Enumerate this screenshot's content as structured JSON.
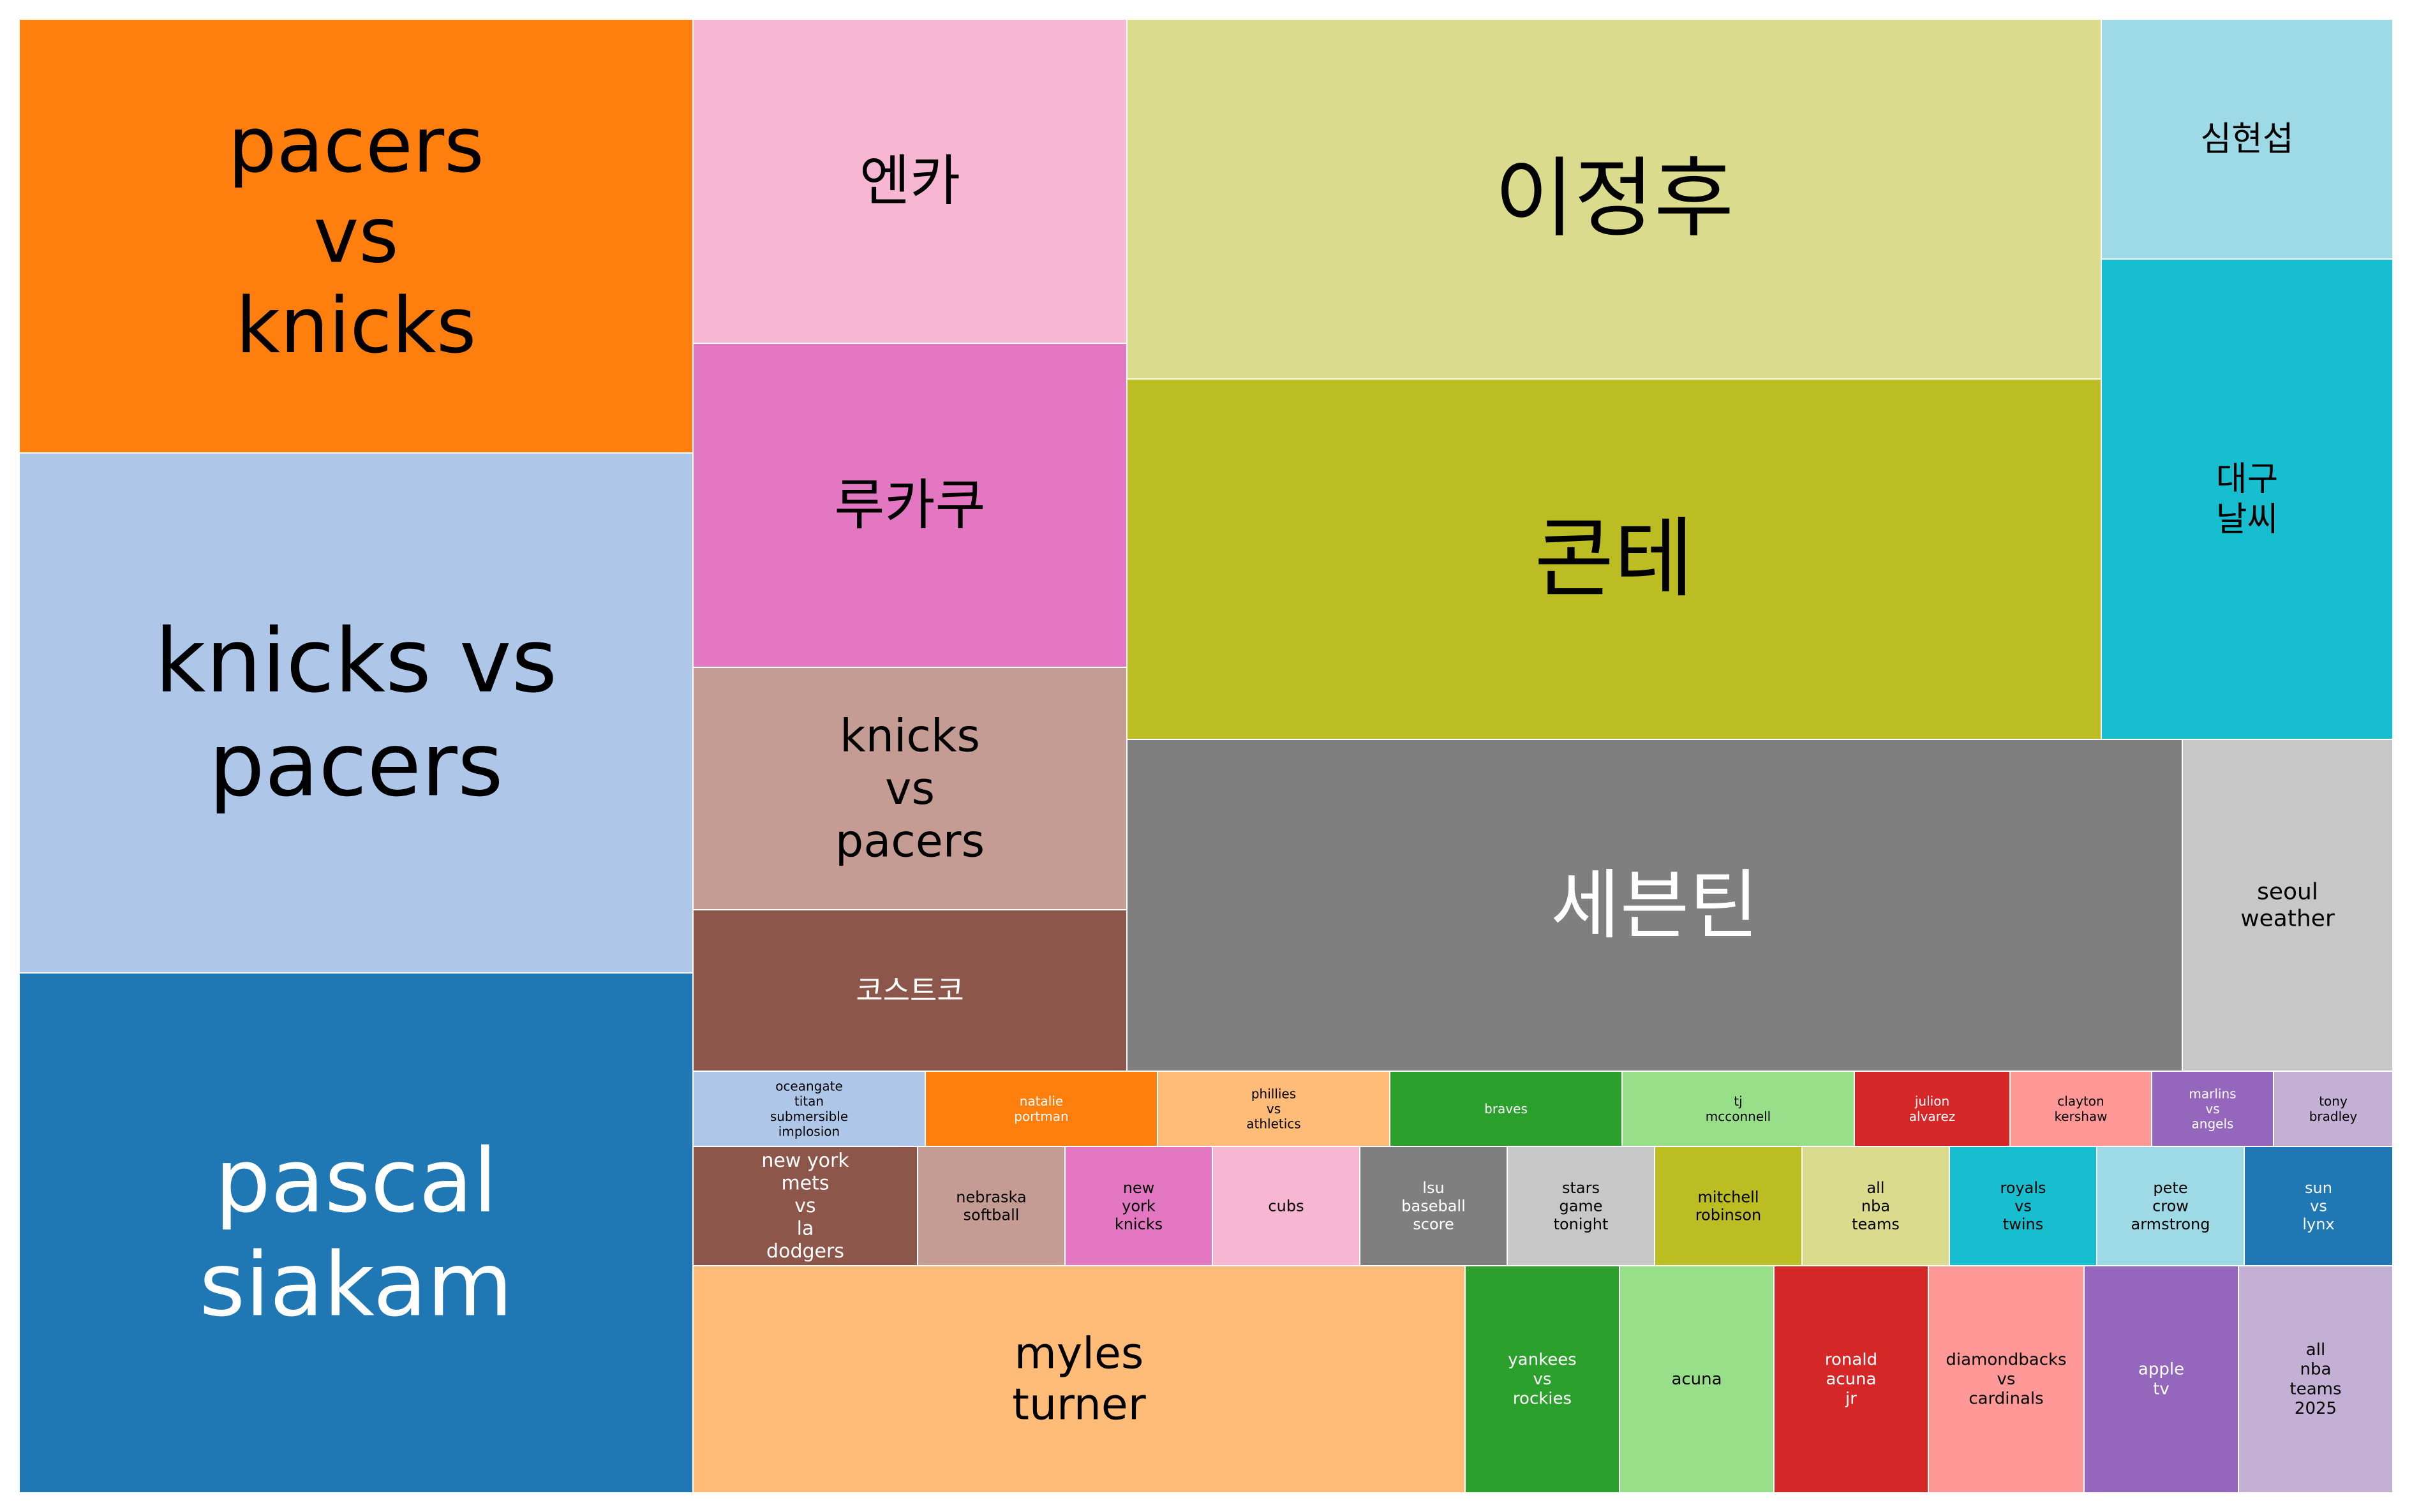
{
  "chart_data": {
    "type": "treemap",
    "title": "",
    "items": [
      {
        "label": "pacers vs knicks",
        "lines": [
          "pacers",
          "vs",
          "knicks"
        ],
        "color": "#ff7f0e",
        "text_color": "#000000"
      },
      {
        "label": "knicks vs pacers",
        "lines": [
          "knicks vs",
          "pacers"
        ],
        "color": "#aec7e8",
        "text_color": "#000000"
      },
      {
        "label": "pascal siakam",
        "lines": [
          "pascal",
          "siakam"
        ],
        "color": "#1f77b4",
        "text_color": "#ffffff"
      },
      {
        "label": "엔카",
        "lines": [
          "엔카"
        ],
        "color": "#f7b6d2",
        "text_color": "#000000"
      },
      {
        "label": "루카쿠",
        "lines": [
          "루카쿠"
        ],
        "color": "#e377c2",
        "text_color": "#000000"
      },
      {
        "label": "knicks vs pacers",
        "lines": [
          "knicks",
          "vs",
          "pacers"
        ],
        "color": "#c49c94",
        "text_color": "#000000"
      },
      {
        "label": "코스트코",
        "lines": [
          "코스트코"
        ],
        "color": "#8c564b",
        "text_color": "#ffffff"
      },
      {
        "label": "이정후",
        "lines": [
          "이정후"
        ],
        "color": "#dbdb8d",
        "text_color": "#000000"
      },
      {
        "label": "콘테",
        "lines": [
          "콘테"
        ],
        "color": "#bcbd22",
        "text_color": "#000000"
      },
      {
        "label": "심현섭",
        "lines": [
          "심현섭"
        ],
        "color": "#9edae5",
        "text_color": "#000000"
      },
      {
        "label": "대구 날씨",
        "lines": [
          "대구",
          "날씨"
        ],
        "color": "#17becf",
        "text_color": "#000000"
      },
      {
        "label": "세븐틴",
        "lines": [
          "세븐틴"
        ],
        "color": "#7f7f7f",
        "text_color": "#ffffff"
      },
      {
        "label": "seoul weather",
        "lines": [
          "seoul",
          "weather"
        ],
        "color": "#c7c7c7",
        "text_color": "#000000"
      },
      {
        "label": "oceangate titan submersible implosion",
        "lines": [
          "oceangate",
          "titan",
          "submersible",
          "implosion"
        ],
        "color": "#aec7e8",
        "text_color": "#000000"
      },
      {
        "label": "natalie portman",
        "lines": [
          "natalie",
          "portman"
        ],
        "color": "#ff7f0e",
        "text_color": "#ffffff"
      },
      {
        "label": "phillies vs athletics",
        "lines": [
          "phillies",
          "vs",
          "athletics"
        ],
        "color": "#ffbb78",
        "text_color": "#000000"
      },
      {
        "label": "braves",
        "lines": [
          "braves"
        ],
        "color": "#2ca02c",
        "text_color": "#ffffff"
      },
      {
        "label": "tj mcconnell",
        "lines": [
          "tj",
          "mcconnell"
        ],
        "color": "#98df8a",
        "text_color": "#000000"
      },
      {
        "label": "julion alvarez",
        "lines": [
          "julion",
          "alvarez"
        ],
        "color": "#d62728",
        "text_color": "#ffffff"
      },
      {
        "label": "clayton kershaw",
        "lines": [
          "clayton",
          "kershaw"
        ],
        "color": "#ff9896",
        "text_color": "#000000"
      },
      {
        "label": "marlins vs angels",
        "lines": [
          "marlins",
          "vs",
          "angels"
        ],
        "color": "#9467bd",
        "text_color": "#ffffff"
      },
      {
        "label": "tony bradley",
        "lines": [
          "tony",
          "bradley"
        ],
        "color": "#c5b0d5",
        "text_color": "#000000"
      },
      {
        "label": "new york mets vs la dodgers",
        "lines": [
          "new york",
          "mets",
          "vs",
          "la",
          "dodgers"
        ],
        "color": "#8c564b",
        "text_color": "#ffffff"
      },
      {
        "label": "nebraska softball",
        "lines": [
          "nebraska",
          "softball"
        ],
        "color": "#c49c94",
        "text_color": "#000000"
      },
      {
        "label": "new york knicks",
        "lines": [
          "new",
          "york",
          "knicks"
        ],
        "color": "#e377c2",
        "text_color": "#000000"
      },
      {
        "label": "cubs",
        "lines": [
          "cubs"
        ],
        "color": "#f7b6d2",
        "text_color": "#000000"
      },
      {
        "label": "lsu baseball score",
        "lines": [
          "lsu",
          "baseball",
          "score"
        ],
        "color": "#7f7f7f",
        "text_color": "#ffffff"
      },
      {
        "label": "stars game tonight",
        "lines": [
          "stars",
          "game",
          "tonight"
        ],
        "color": "#c7c7c7",
        "text_color": "#000000"
      },
      {
        "label": "mitchell robinson",
        "lines": [
          "mitchell",
          "robinson"
        ],
        "color": "#bcbd22",
        "text_color": "#000000"
      },
      {
        "label": "all nba teams",
        "lines": [
          "all",
          "nba",
          "teams"
        ],
        "color": "#dbdb8d",
        "text_color": "#000000"
      },
      {
        "label": "royals vs twins",
        "lines": [
          "royals",
          "vs",
          "twins"
        ],
        "color": "#17becf",
        "text_color": "#000000"
      },
      {
        "label": "pete crow armstrong",
        "lines": [
          "pete",
          "crow",
          "armstrong"
        ],
        "color": "#9edae5",
        "text_color": "#000000"
      },
      {
        "label": "sun vs lynx",
        "lines": [
          "sun",
          "vs",
          "lynx"
        ],
        "color": "#1f77b4",
        "text_color": "#ffffff"
      },
      {
        "label": "myles turner",
        "lines": [
          "myles",
          "turner"
        ],
        "color": "#ffbb78",
        "text_color": "#000000"
      },
      {
        "label": "yankees vs rockies",
        "lines": [
          "yankees",
          "vs",
          "rockies"
        ],
        "color": "#2ca02c",
        "text_color": "#ffffff"
      },
      {
        "label": "acuna",
        "lines": [
          "acuna"
        ],
        "color": "#98df8a",
        "text_color": "#000000"
      },
      {
        "label": "ronald acuna jr",
        "lines": [
          "ronald",
          "acuna",
          "jr"
        ],
        "color": "#d62728",
        "text_color": "#ffffff"
      },
      {
        "label": "diamondbacks vs cardinals",
        "lines": [
          "diamondbacks",
          "vs",
          "cardinals"
        ],
        "color": "#ff9896",
        "text_color": "#000000"
      },
      {
        "label": "apple tv",
        "lines": [
          "apple",
          "tv"
        ],
        "color": "#9467bd",
        "text_color": "#ffffff"
      },
      {
        "label": "all nba teams 2025",
        "lines": [
          "all",
          "nba",
          "teams",
          "2025"
        ],
        "color": "#c5b0d5",
        "text_color": "#000000"
      }
    ]
  }
}
